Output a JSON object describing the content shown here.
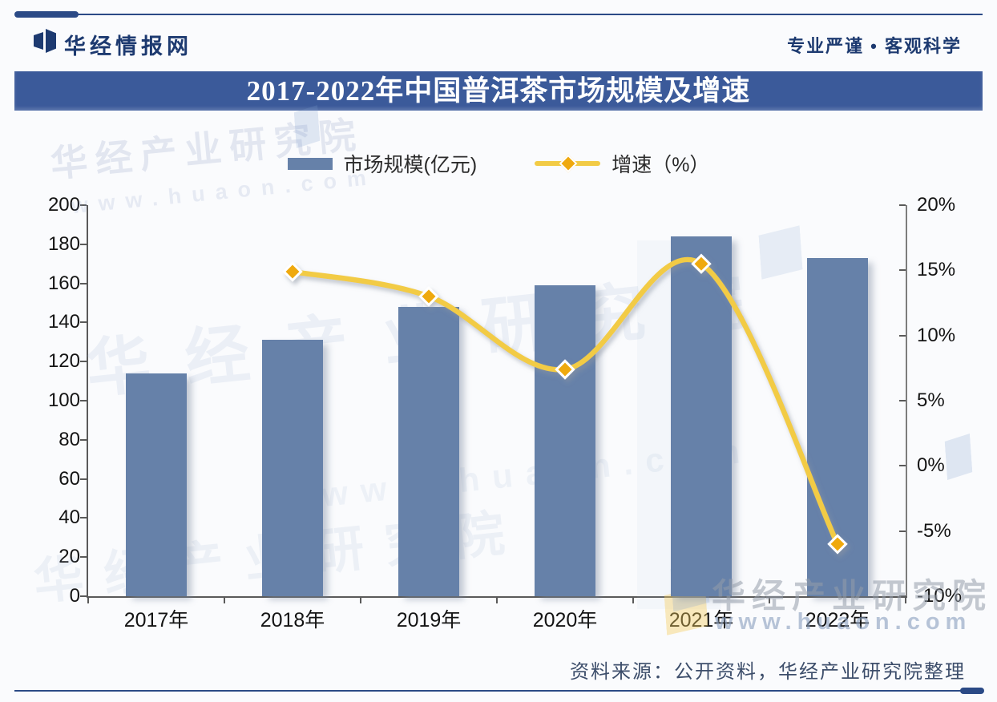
{
  "header": {
    "brand": "华经情报网",
    "slogan": "专业严谨 • 客观科学"
  },
  "title": "2017-2022年中国普洱茶市场规模及增速",
  "legend": {
    "bar_label": "市场规模(亿元)",
    "line_label": "增速（%）"
  },
  "chart_data": {
    "type": "bar+line",
    "title": "2017-2022年中国普洱茶市场规模及增速",
    "categories": [
      "2017年",
      "2018年",
      "2019年",
      "2020年",
      "2021年",
      "2022年"
    ],
    "series": [
      {
        "name": "市场规模(亿元)",
        "type": "bar",
        "axis": "left",
        "values": [
          114,
          131,
          148,
          159,
          184,
          173
        ],
        "color": "#6681a9"
      },
      {
        "name": "增速（%）",
        "type": "line",
        "axis": "right",
        "values": [
          null,
          14.9,
          13.0,
          7.4,
          15.5,
          -6.0
        ],
        "color": "#f2cb45",
        "marker": "diamond",
        "marker_color": "#efa90f"
      }
    ],
    "left_axis": {
      "min": 0,
      "max": 200,
      "step": 20,
      "tick_labels": [
        "0",
        "20",
        "40",
        "60",
        "80",
        "100",
        "120",
        "140",
        "160",
        "180",
        "200"
      ]
    },
    "right_axis": {
      "min": -10,
      "max": 20,
      "step": 5,
      "suffix": "%",
      "tick_labels": [
        "-10%",
        "-5%",
        "0%",
        "5%",
        "10%",
        "15%",
        "20%"
      ]
    },
    "grid": false,
    "legend_position": "top"
  },
  "watermarks": {
    "org": "华经产业研究院",
    "url": "www.huaon.com"
  },
  "source": "资料来源：公开资料，华经产业研究院整理",
  "colors": {
    "navy": "#1d3a70",
    "banner_bg": "#3b5a9a",
    "bar": "#6681a9",
    "line": "#f2cb45",
    "marker": "#efa90f"
  }
}
